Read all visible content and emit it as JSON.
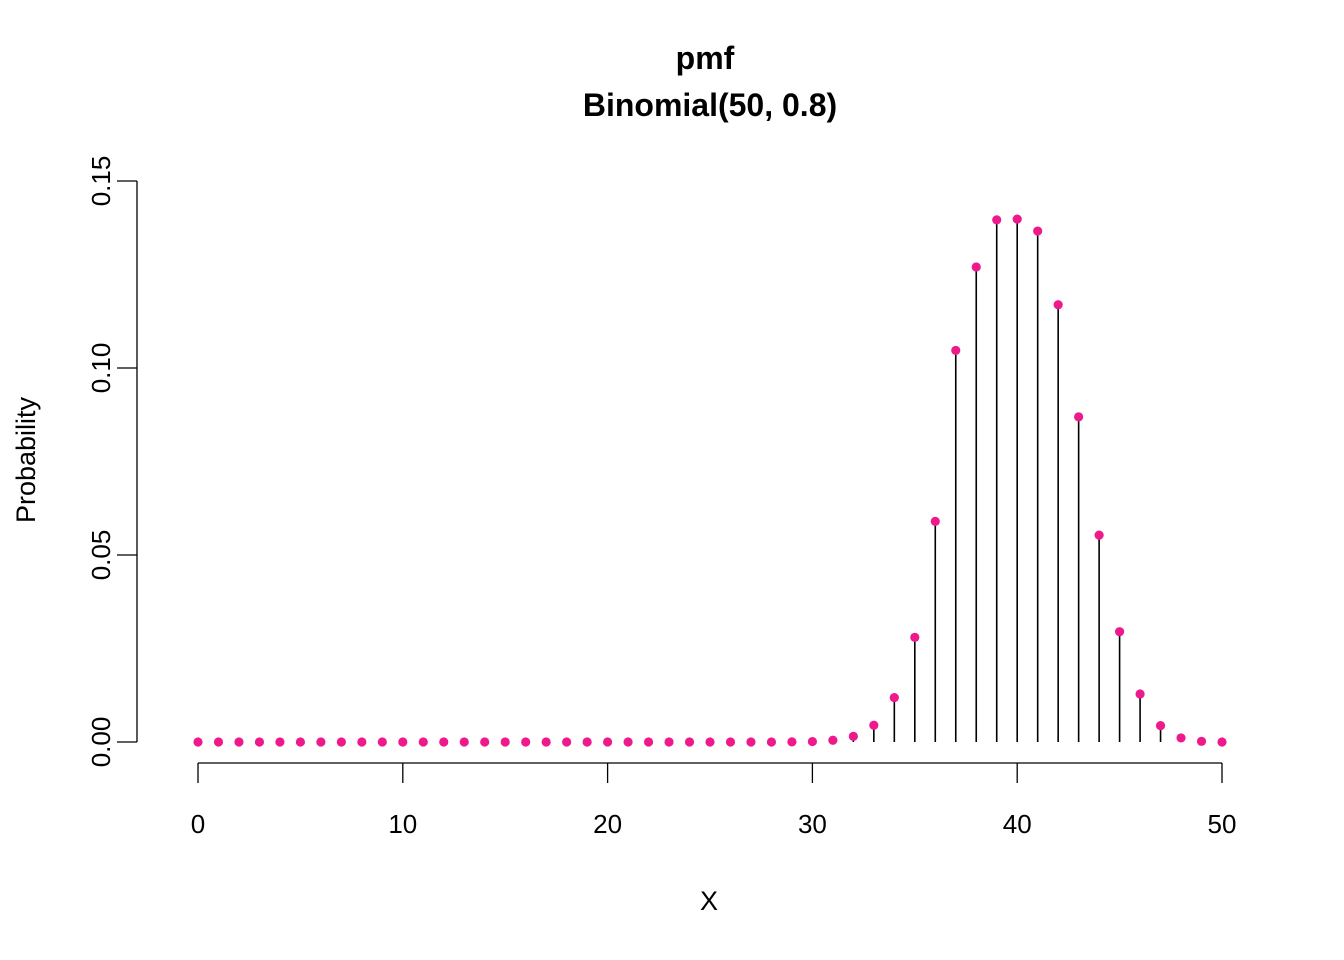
{
  "chart_data": {
    "type": "scatter",
    "title": "pmf",
    "subtitle": "Binomial(50, 0.8)",
    "xlabel": "X",
    "ylabel": "Probability",
    "xlim": [
      0,
      50
    ],
    "ylim": [
      0,
      0.15
    ],
    "x_ticks": [
      "0",
      "10",
      "20",
      "30",
      "40",
      "50"
    ],
    "y_ticks": [
      "0.00",
      "0.05",
      "0.10",
      "0.15"
    ],
    "grid": false,
    "legend": "none",
    "point_color": "#ee1a8c",
    "stem_color": "#000000",
    "x": [
      0,
      1,
      2,
      3,
      4,
      5,
      6,
      7,
      8,
      9,
      10,
      11,
      12,
      13,
      14,
      15,
      16,
      17,
      18,
      19,
      20,
      21,
      22,
      23,
      24,
      25,
      26,
      27,
      28,
      29,
      30,
      31,
      32,
      33,
      34,
      35,
      36,
      37,
      38,
      39,
      40,
      41,
      42,
      43,
      44,
      45,
      46,
      47,
      48,
      49,
      50
    ],
    "values": [
      0,
      0,
      0,
      0,
      0,
      0,
      0,
      0,
      0,
      0,
      0,
      0,
      0,
      0,
      0,
      0,
      0,
      0,
      0,
      0,
      0,
      0,
      0,
      0,
      0,
      0,
      0,
      0,
      0,
      3e-05,
      0.00012,
      0.00046,
      0.00152,
      0.00447,
      0.01186,
      0.02797,
      0.059,
      0.1047,
      0.12701,
      0.13961,
      0.13982,
      0.13662,
      0.11691,
      0.08693,
      0.05532,
      0.0295,
      0.01283,
      0.00437,
      0.00109,
      0.00018,
      1e-05
    ]
  }
}
